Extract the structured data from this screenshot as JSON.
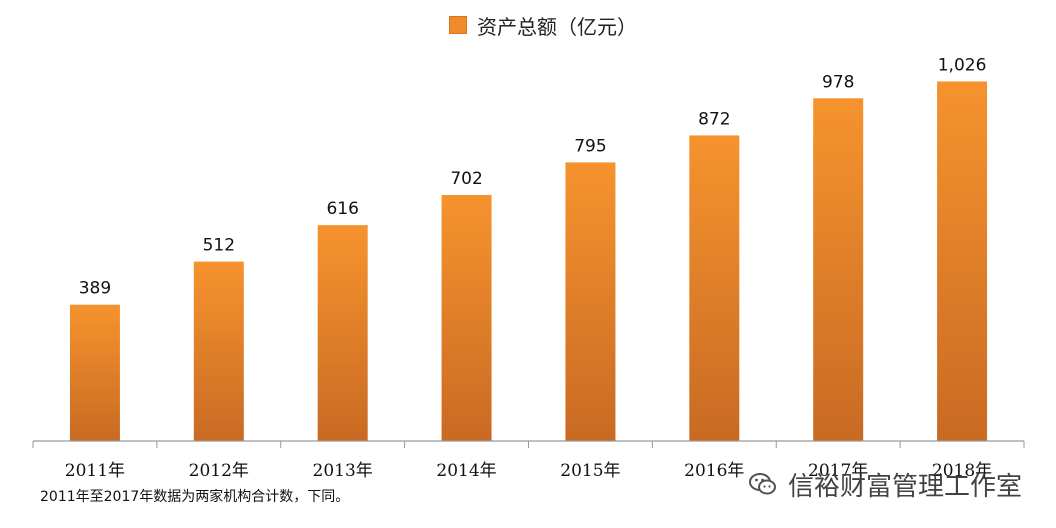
{
  "chart_data": {
    "type": "bar",
    "title": "",
    "categories": [
      "2011年",
      "2012年",
      "2013年",
      "2014年",
      "2015年",
      "2016年",
      "2017年",
      "2018年"
    ],
    "series": [
      {
        "name": "资产总额（亿元）",
        "values": [
          389,
          512,
          616,
          702,
          795,
          872,
          978,
          1026
        ]
      }
    ],
    "data_labels": [
      "389",
      "512",
      "616",
      "702",
      "795",
      "872",
      "978",
      "1,026"
    ],
    "xlabel": "",
    "ylabel": "",
    "ylim": [
      0,
      1150
    ],
    "grid": false,
    "legend": {
      "position": "top-center"
    },
    "colors": {
      "bar_top": "#f6932e",
      "bar_bottom": "#c96a23",
      "axis": "#999999"
    }
  },
  "footnote": "2011年至2017年数据为两家机构合计数，下同。",
  "watermark": {
    "icon": "wechat-icon",
    "text": "信裕财富管理工作室"
  }
}
